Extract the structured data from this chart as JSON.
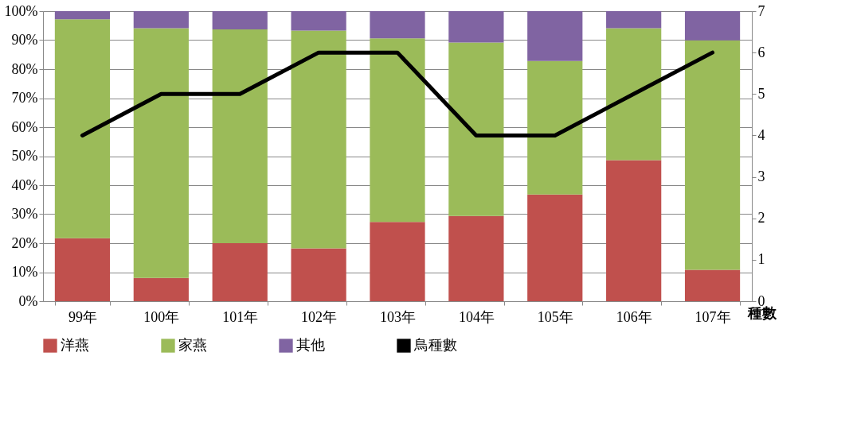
{
  "chart_data": {
    "type": "bar",
    "stacked": true,
    "y2label": "種數",
    "categories": [
      "99年",
      "100年",
      "101年",
      "102年",
      "103年",
      "104年",
      "105年",
      "106年",
      "107年"
    ],
    "series": [
      {
        "name": "洋燕",
        "color": "#c0504d",
        "values": [
          21.7,
          8,
          20,
          18.2,
          27.3,
          29.4,
          36.8,
          48.6,
          10.8
        ]
      },
      {
        "name": "家燕",
        "color": "#9bbb59",
        "values": [
          75.5,
          86.1,
          73.7,
          75.1,
          63.3,
          59.8,
          46,
          45.5,
          79.1
        ]
      },
      {
        "name": "其他",
        "color": "#8064a2",
        "values": [
          2.8,
          5.9,
          6.3,
          6.7,
          9.4,
          10.8,
          17.2,
          5.9,
          10.1
        ]
      },
      {
        "name": "鳥種數",
        "type": "line",
        "axis": "y2",
        "color": "#000000",
        "values": [
          4,
          5,
          5,
          6,
          6,
          4,
          4,
          5,
          6
        ]
      }
    ],
    "ylim": [
      0,
      100
    ],
    "yticks": [
      {
        "value": 0,
        "label": "0%"
      },
      {
        "value": 10,
        "label": "10%"
      },
      {
        "value": 20,
        "label": "20%"
      },
      {
        "value": 30,
        "label": "30%"
      },
      {
        "value": 40,
        "label": "40%"
      },
      {
        "value": 50,
        "label": "50%"
      },
      {
        "value": 60,
        "label": "60%"
      },
      {
        "value": 70,
        "label": "70%"
      },
      {
        "value": 80,
        "label": "80%"
      },
      {
        "value": 90,
        "label": "90%"
      },
      {
        "value": 100,
        "label": "100%"
      }
    ],
    "y2lim": [
      0,
      7
    ],
    "y2ticks": [
      0,
      1,
      2,
      3,
      4,
      5,
      6,
      7
    ],
    "grid": "y",
    "legend": "bottom",
    "marker": "none",
    "line_style": "solid"
  }
}
